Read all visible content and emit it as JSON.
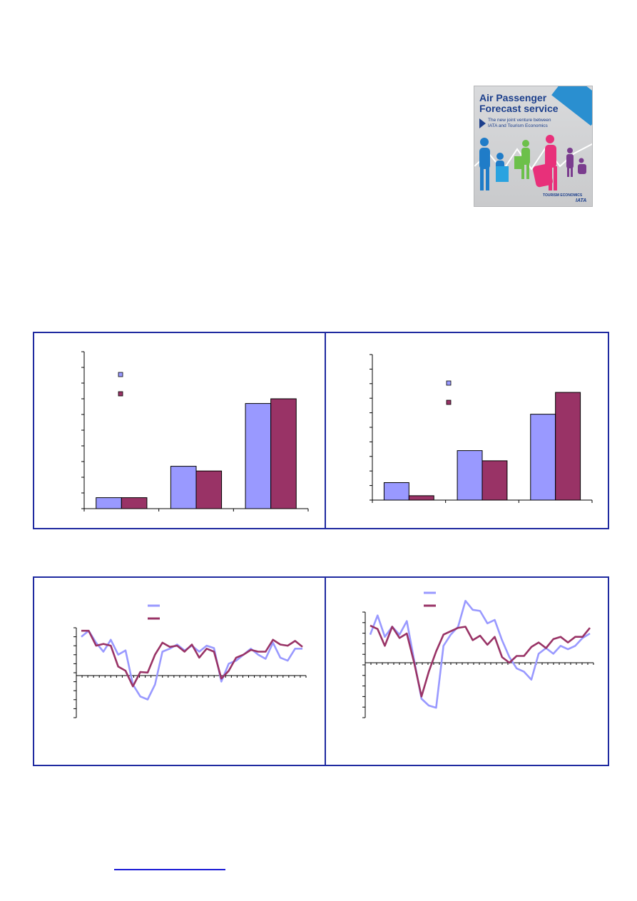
{
  "brochure": {
    "title": "Air Passenger\nForecast service",
    "subtitle": "The new joint venture between\nIATA and Tourism Economics",
    "logo_left": "TOURISM ECONOMICS",
    "logo_right": "IATA",
    "colors": {
      "background": "#cfd0d2",
      "title": "#1c3f8c",
      "accent": "#2a8fd0"
    }
  },
  "chart_data": [
    {
      "type": "bar",
      "categories": [
        "",
        "",
        ""
      ],
      "series": [
        {
          "values": [
            0.7,
            2.7,
            6.7
          ],
          "color": "#9999ff"
        },
        {
          "values": [
            0.7,
            2.4,
            7.0
          ],
          "color": "#993366"
        }
      ],
      "ylim": [
        0,
        10
      ],
      "legend": "top-left",
      "grid": false
    },
    {
      "type": "bar",
      "categories": [
        "",
        "",
        ""
      ],
      "series": [
        {
          "values": [
            1.2,
            3.4,
            5.9
          ],
          "color": "#9999ff"
        },
        {
          "values": [
            0.3,
            2.7,
            7.4
          ],
          "color": "#993366"
        }
      ],
      "ylim": [
        0,
        10
      ],
      "legend": "top-center",
      "grid": false
    },
    {
      "type": "line",
      "x_count": 40,
      "series": [
        {
          "values": [
            6.5,
            7.5,
            5.5,
            4.0,
            6.0,
            3.5,
            4.2,
            -1.5,
            -3.5,
            -4.0,
            -1.5,
            4.0,
            4.5,
            5.2,
            4.2,
            5.0,
            4.0,
            5.0,
            4.6,
            -1.0,
            2.0,
            2.5,
            3.5,
            4.5,
            3.5,
            2.8,
            5.5,
            3.0,
            2.5,
            4.5,
            4.5
          ],
          "color": "#9999ff"
        },
        {
          "values": [
            7.5,
            7.5,
            5.0,
            5.3,
            5.0,
            1.5,
            0.8,
            -1.8,
            0.6,
            0.5,
            3.5,
            5.5,
            4.8,
            5.0,
            4.0,
            5.2,
            3.0,
            4.5,
            4.0,
            -0.5,
            0.8,
            3.0,
            3.5,
            4.3,
            4.0,
            4.0,
            6.0,
            5.2,
            5.0,
            5.8,
            4.8
          ],
          "color": "#993366"
        }
      ],
      "ylim": [
        -8,
        8
      ],
      "legend": "top-center",
      "grid": false
    },
    {
      "type": "line",
      "x_count": 40,
      "series": [
        {
          "values": [
            2.5,
            4.2,
            2.3,
            3.2,
            2.5,
            3.7,
            0.2,
            -3.2,
            -3.8,
            -4.0,
            1.5,
            2.5,
            3.2,
            5.5,
            4.7,
            4.6,
            3.5,
            3.8,
            2.0,
            0.5,
            -0.5,
            -0.8,
            -1.5,
            0.8,
            1.3,
            0.8,
            1.5,
            1.2,
            1.5,
            2.2,
            2.6
          ],
          "color": "#9999ff"
        },
        {
          "values": [
            3.3,
            3.0,
            1.5,
            3.2,
            2.2,
            2.6,
            0.0,
            -3.0,
            -0.8,
            1.0,
            2.5,
            2.8,
            3.1,
            3.2,
            2.0,
            2.4,
            1.6,
            2.3,
            0.5,
            0.0,
            0.6,
            0.6,
            1.4,
            1.8,
            1.3,
            2.1,
            2.3,
            1.8,
            2.3,
            2.3,
            3.1
          ],
          "color": "#993366"
        }
      ],
      "ylim": [
        -4.5,
        4.5
      ],
      "legend": "top-left",
      "grid": false
    }
  ]
}
